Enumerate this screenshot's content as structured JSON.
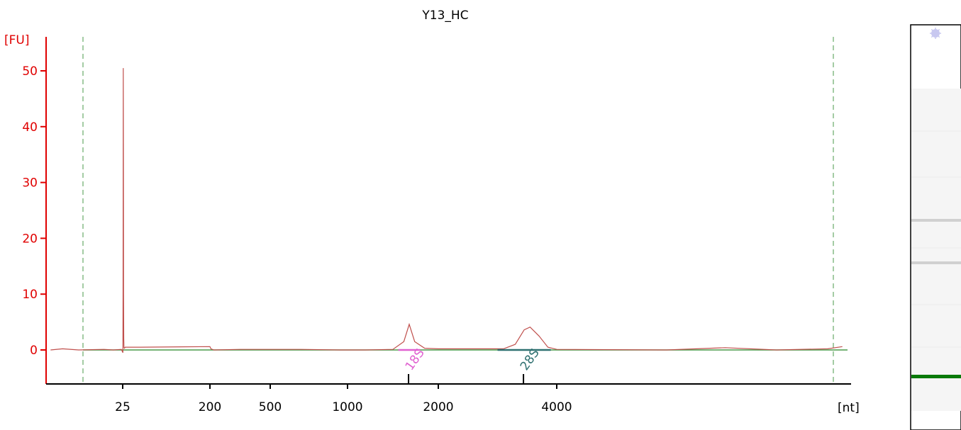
{
  "chart_data": {
    "type": "line",
    "title": "Y13_HC",
    "ylabel": "[FU]",
    "xlabel": "[nt]",
    "ylim": [
      -6,
      55
    ],
    "yticks": [
      0,
      10,
      20,
      30,
      40,
      50
    ],
    "xticks": [
      "25",
      "200",
      "500",
      "1000",
      "2000",
      "4000"
    ],
    "grid": false,
    "series": [
      {
        "color": "#c0504d",
        "points": [
          [
            19.6,
            0.0
          ],
          [
            20.5,
            0.2
          ],
          [
            21.7,
            0.0
          ],
          [
            23.6,
            0.1
          ],
          [
            24.3,
            0.0
          ],
          [
            24.9,
            0.1
          ],
          [
            25.4,
            -0.5
          ],
          [
            25.7,
            10.0
          ],
          [
            25.95,
            35.0
          ],
          [
            26.15,
            50.5
          ],
          [
            26.4,
            35.0
          ],
          [
            26.7,
            10.0
          ],
          [
            27.1,
            2.0
          ],
          [
            27.6,
            0.4
          ],
          [
            28.5,
            0.3
          ],
          [
            30,
            0.5
          ],
          [
            60,
            0.5
          ],
          [
            200,
            0.6
          ],
          [
            205,
            0.2
          ],
          [
            220,
            0.0
          ],
          [
            350,
            0.1
          ],
          [
            700,
            0.1
          ],
          [
            950,
            0.0
          ],
          [
            1200,
            0.0
          ],
          [
            1500,
            0.1
          ],
          [
            1620,
            1.5
          ],
          [
            1680,
            4.6
          ],
          [
            1740,
            1.5
          ],
          [
            1850,
            0.3
          ],
          [
            2000,
            0.2
          ],
          [
            3100,
            0.2
          ],
          [
            3300,
            1.0
          ],
          [
            3450,
            3.6
          ],
          [
            3550,
            4.1
          ],
          [
            3700,
            2.5
          ],
          [
            3850,
            0.5
          ],
          [
            4000,
            0.1
          ],
          [
            5500,
            0.0
          ],
          [
            6300,
            0.4
          ],
          [
            7000,
            0.0
          ],
          [
            7700,
            0.2
          ],
          [
            7900,
            0.6
          ]
        ]
      }
    ],
    "baseline_color": "#4a9a4a",
    "markers": [
      {
        "label": "18S",
        "x": 1680,
        "color": "#e060d0"
      },
      {
        "label": "28S",
        "x": 3450,
        "color": "#2e7070"
      }
    ],
    "run_window_color": "#4a9a4a",
    "gel_lane": {
      "background": "#f5f5f5",
      "band_color": "#d0d0d0",
      "marker_band_color": "#0a7a0a",
      "upper_marker_color": "#c8c8f0"
    }
  }
}
